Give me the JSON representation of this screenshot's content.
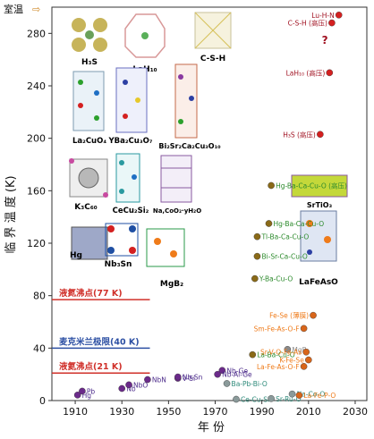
{
  "chart_data": {
    "type": "scatter",
    "xlabel": "年 份",
    "ylabel": "临 界 温 度 (K)",
    "xlim": [
      1900,
      2035
    ],
    "ylim": [
      0,
      300
    ],
    "x_ticks": [
      1910,
      1930,
      1950,
      1970,
      1990,
      2010,
      2030
    ],
    "y_ticks": [
      0,
      40,
      80,
      120,
      160,
      200,
      240,
      280
    ],
    "room_temp_label": "室温",
    "reference_lines": [
      {
        "label": "液氮沸点(77 K)",
        "value": 77,
        "color": "#d0302a"
      },
      {
        "label": "麦克米兰极限(40 K)",
        "value": 40,
        "color": "#2c4fa3"
      },
      {
        "label": "液氦沸点(21 K)",
        "value": 21,
        "color": "#d0302a"
      }
    ],
    "series": [
      {
        "name": "",
        "color": "#6b2a8a",
        "label_color": "#4b2a8a",
        "points": [
          {
            "label": "Hg",
            "x": 1911,
            "y": 4.2
          },
          {
            "label": "Pb",
            "x": 1913,
            "y": 7.2
          },
          {
            "label": "Nb",
            "x": 1930,
            "y": 9.2
          },
          {
            "label": "NbO",
            "x": 1933,
            "y": 12
          },
          {
            "label": "NbN",
            "x": 1941,
            "y": 16
          },
          {
            "label": "V-Si",
            "x": 1954,
            "y": 17
          },
          {
            "label": "Nb-Sn",
            "x": 1954,
            "y": 18
          },
          {
            "label": "Nb-Ge",
            "x": 1973,
            "y": 23
          },
          {
            "label": "Nb-Al-Ge",
            "x": 1971,
            "y": 20
          }
        ]
      },
      {
        "name": "",
        "color": "#8a9a9a",
        "label_color": "#2e8a7a",
        "points": [
          {
            "label": "Ba-Pb-Bi-O",
            "x": 1975,
            "y": 13
          },
          {
            "label": "Ce-Cu-Si",
            "x": 1979,
            "y": 1
          },
          {
            "label": "Sr-Ru-O",
            "x": 1994,
            "y": 1.5
          },
          {
            "label": "Na-Co-O",
            "x": 2003,
            "y": 5
          }
        ]
      },
      {
        "name": "",
        "color": "#8a6a18",
        "label_color": "#2c8a2c",
        "points": [
          {
            "label": "La-Ba-Cu-O",
            "x": 1986,
            "y": 35
          },
          {
            "label": "Y-Ba-Cu-O",
            "x": 1987,
            "y": 93
          },
          {
            "label": "Bi-Sr-Ca-Cu-O",
            "x": 1988,
            "y": 110
          },
          {
            "label": "Tl-Ba-Ca-Cu-O",
            "x": 1988,
            "y": 125
          },
          {
            "label": "Hg-Ba-Ca-Cu-O",
            "x": 1993,
            "y": 135
          },
          {
            "label": "Hg-Ba-Ca-Cu-O (高压)",
            "x": 1994,
            "y": 164
          }
        ]
      },
      {
        "name": "",
        "color": "#8a8a8a",
        "label_color": "#8a8a8a",
        "points": [
          {
            "label": "MgB₂",
            "x": 2001,
            "y": 39
          }
        ]
      },
      {
        "name": "",
        "color": "#d8651a",
        "label_color": "#ef7b1a",
        "points": [
          {
            "label": "Fe-Se (薄膜)",
            "x": 2012,
            "y": 65
          },
          {
            "label": "Sm-Fe-As-O-F",
            "x": 2008,
            "y": 55
          },
          {
            "label": "Sr-V-O-Fe-As",
            "x": 2009,
            "y": 37
          },
          {
            "label": "K-Fe-Se",
            "x": 2010,
            "y": 31
          },
          {
            "label": "La-Fe-As-O-F",
            "x": 2008,
            "y": 26
          },
          {
            "label": "La-Fe-P-O",
            "x": 2006,
            "y": 4
          }
        ]
      },
      {
        "name": "",
        "color": "#d42020",
        "label_color": "#a01020",
        "points": [
          {
            "label": "H₃S (高压)",
            "x": 2015,
            "y": 203
          },
          {
            "label": "LaH₁₀ (高压)",
            "x": 2019,
            "y": 250
          },
          {
            "label": "C-S-H (高压)",
            "x": 2020,
            "y": 288
          },
          {
            "label": "Lu-H-N",
            "x": 2023,
            "y": 294
          }
        ]
      }
    ],
    "question_mark": "?",
    "structures": [
      {
        "label": "H₃S",
        "color": "#555555"
      },
      {
        "label": "LaH₁₀",
        "color": "#555555"
      },
      {
        "label": "C-S-H",
        "color": "#555555"
      },
      {
        "label": "La₂CuO₄",
        "color": "#111111"
      },
      {
        "label": "YBa₂Cu₃O₇",
        "color": "#111111"
      },
      {
        "label": "Bi₂Sr₂Ca₂Cu₃O₁₀",
        "color": "#111111"
      },
      {
        "label": "K₃C₆₀",
        "color": "#111111"
      },
      {
        "label": "CeCu₂Si₂",
        "color": "#111111"
      },
      {
        "label": "Na,CoO₂·yH₂O",
        "color": "#111111"
      },
      {
        "label": "Hg",
        "color": "#111111"
      },
      {
        "label": "Nb₃Sn",
        "color": "#111111"
      },
      {
        "label": "MgB₂",
        "color": "#111111"
      },
      {
        "label": "SrTiO₃",
        "color": "#111111"
      },
      {
        "label": "LaFeAsO",
        "color": "#111111"
      }
    ]
  }
}
